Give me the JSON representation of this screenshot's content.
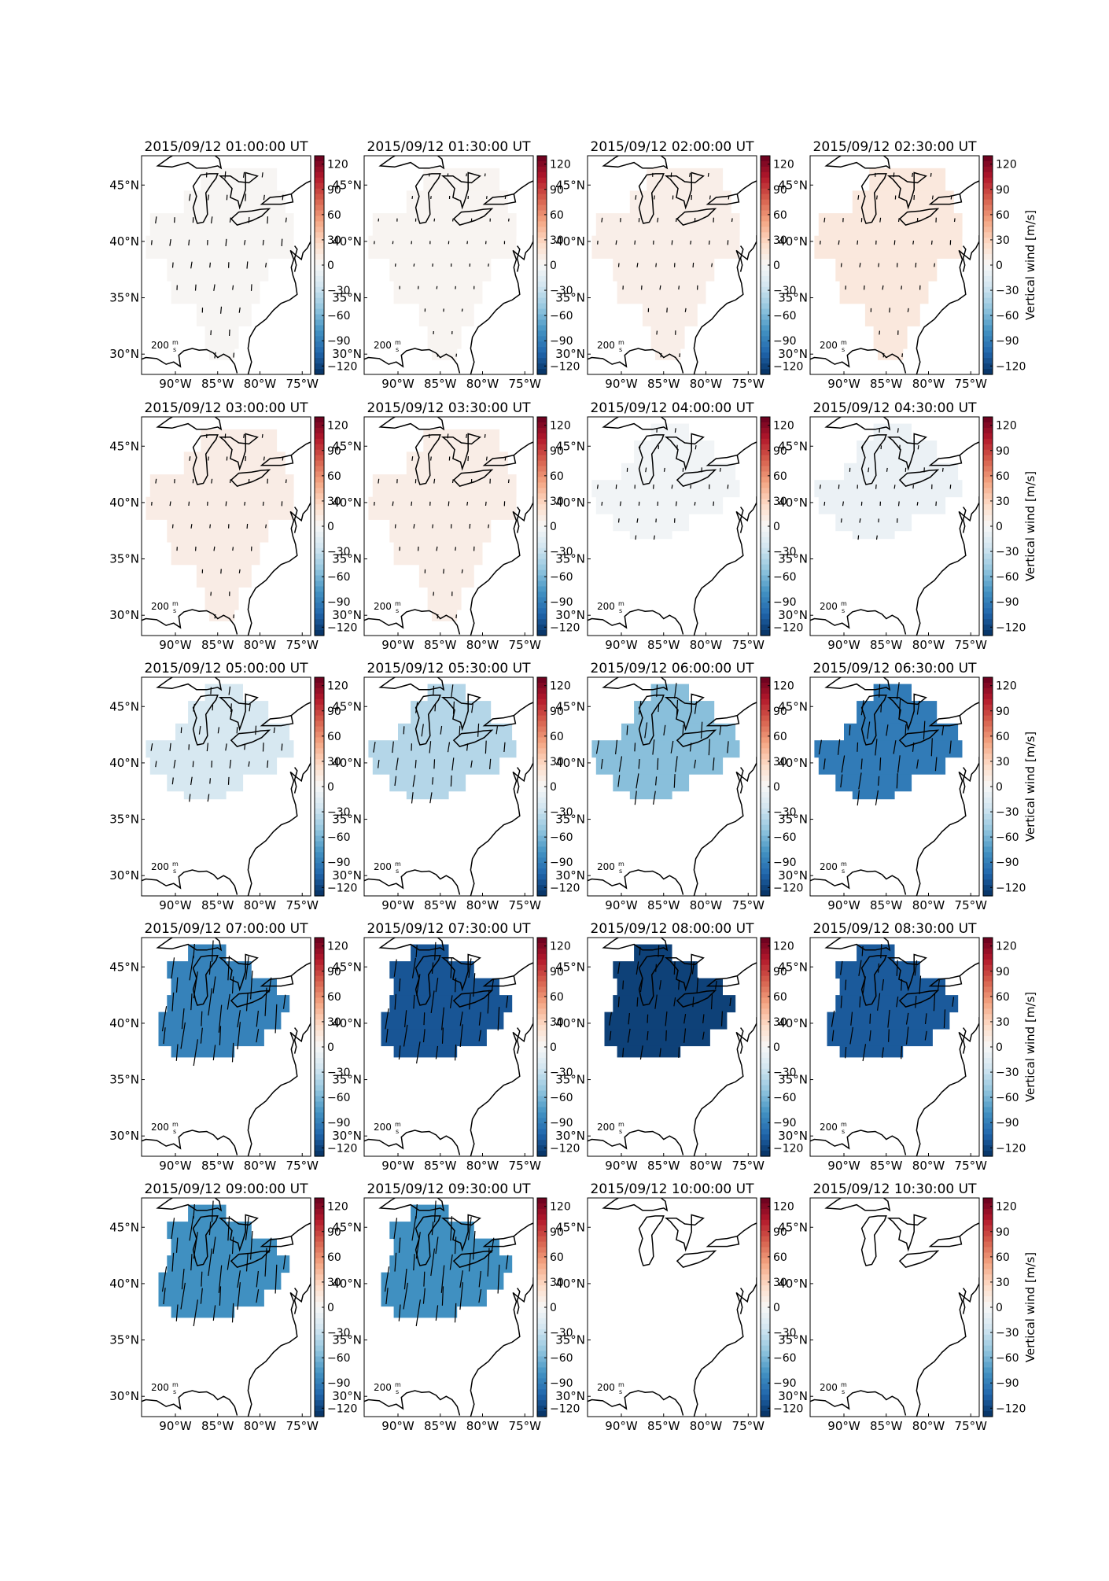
{
  "figure": {
    "colorbar_label": "Vertical wind [m/s]",
    "scale_label": "200",
    "scale_unit_top": "m",
    "scale_unit_bottom": "s",
    "colorbar_ticks": [
      "120",
      "90",
      "60",
      "30",
      "0",
      "−30",
      "−60",
      "−90",
      "−120"
    ],
    "lat_ticks": [
      "45°N",
      "40°N",
      "35°N",
      "30°N"
    ],
    "lon_ticks": [
      "90°W",
      "85°W",
      "80°W",
      "75°W"
    ],
    "panels": [
      {
        "title": "2015/09/12 01:00:00 UT",
        "vertical_wind": 2,
        "coverage": "wide",
        "arrow_strength": 0.25
      },
      {
        "title": "2015/09/12 01:30:00 UT",
        "vertical_wind": 3,
        "coverage": "wide",
        "arrow_strength": 0.0
      },
      {
        "title": "2015/09/12 02:00:00 UT",
        "vertical_wind": 8,
        "coverage": "wide",
        "arrow_strength": 0.1
      },
      {
        "title": "2015/09/12 02:30:00 UT",
        "vertical_wind": 14,
        "coverage": "wide",
        "arrow_strength": 0.1
      },
      {
        "title": "2015/09/12 03:00:00 UT",
        "vertical_wind": 10,
        "coverage": "wide",
        "arrow_strength": 0.1
      },
      {
        "title": "2015/09/12 03:30:00 UT",
        "vertical_wind": 9,
        "coverage": "wide",
        "arrow_strength": 0.1
      },
      {
        "title": "2015/09/12 04:00:00 UT",
        "vertical_wind": -4,
        "coverage": "mid",
        "arrow_strength": 0.1
      },
      {
        "title": "2015/09/12 04:30:00 UT",
        "vertical_wind": -8,
        "coverage": "mid",
        "arrow_strength": 0.1
      },
      {
        "title": "2015/09/12 05:00:00 UT",
        "vertical_wind": -22,
        "coverage": "mid",
        "arrow_strength": 0.35
      },
      {
        "title": "2015/09/12 05:30:00 UT",
        "vertical_wind": -38,
        "coverage": "mid",
        "arrow_strength": 0.6
      },
      {
        "title": "2015/09/12 06:00:00 UT",
        "vertical_wind": -55,
        "coverage": "mid",
        "arrow_strength": 0.8
      },
      {
        "title": "2015/09/12 06:30:00 UT",
        "vertical_wind": -92,
        "coverage": "mid",
        "arrow_strength": 0.9
      },
      {
        "title": "2015/09/12 07:00:00 UT",
        "vertical_wind": -88,
        "coverage": "north",
        "arrow_strength": 1.5
      },
      {
        "title": "2015/09/12 07:30:00 UT",
        "vertical_wind": -112,
        "coverage": "north",
        "arrow_strength": 1.2
      },
      {
        "title": "2015/09/12 08:00:00 UT",
        "vertical_wind": -122,
        "coverage": "north",
        "arrow_strength": 0.7
      },
      {
        "title": "2015/09/12 08:30:00 UT",
        "vertical_wind": -110,
        "coverage": "north",
        "arrow_strength": 0.9
      },
      {
        "title": "2015/09/12 09:00:00 UT",
        "vertical_wind": -80,
        "coverage": "north",
        "arrow_strength": 1.5
      },
      {
        "title": "2015/09/12 09:30:00 UT",
        "vertical_wind": -80,
        "coverage": "north",
        "arrow_strength": 1.5
      },
      {
        "title": "2015/09/12 10:00:00 UT",
        "vertical_wind": null,
        "coverage": "none",
        "arrow_strength": 0
      },
      {
        "title": "2015/09/12 10:30:00 UT",
        "vertical_wind": null,
        "coverage": "none",
        "arrow_strength": 0
      }
    ]
  }
}
